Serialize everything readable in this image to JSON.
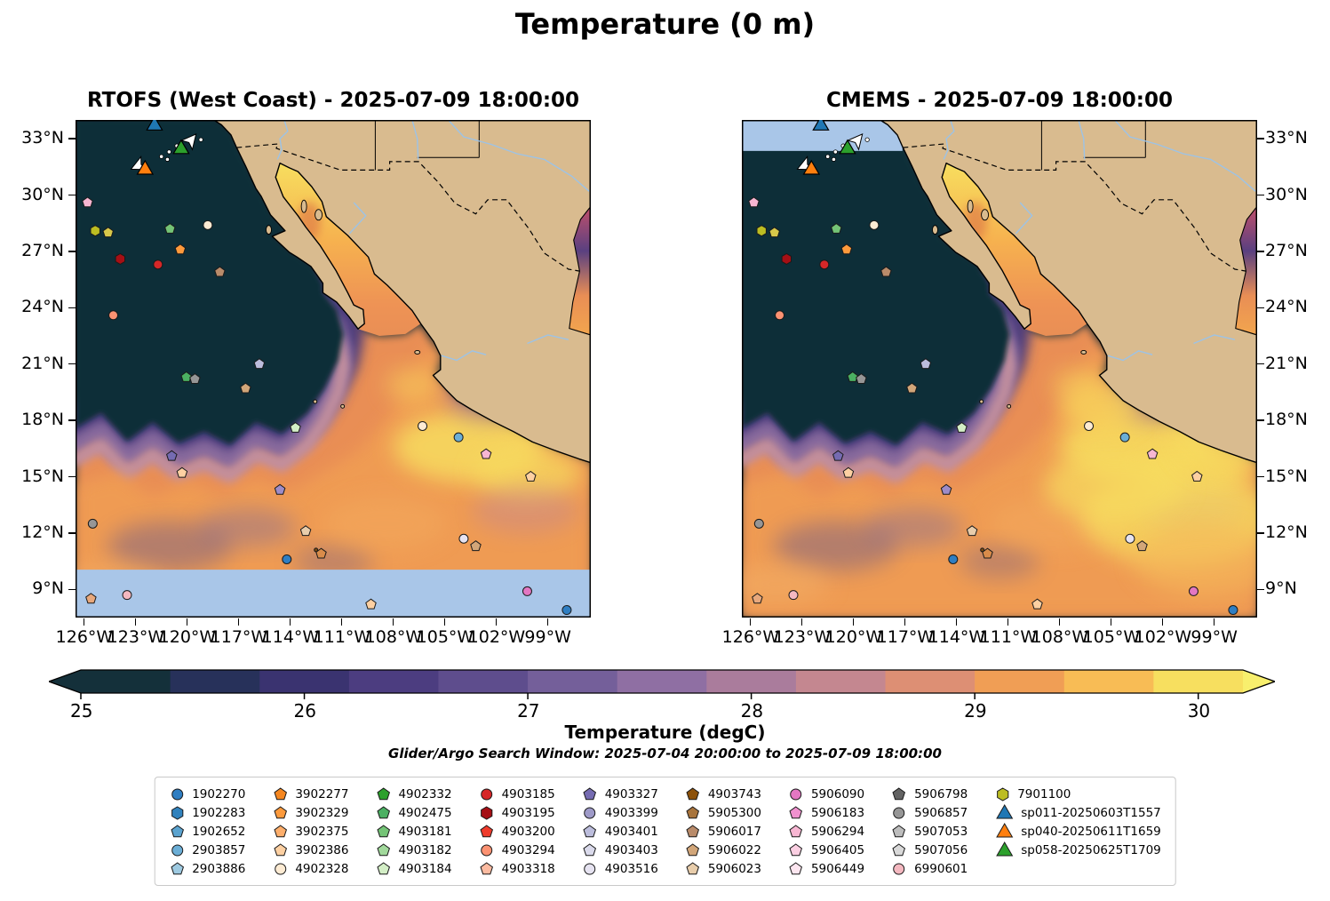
{
  "title": "Temperature (0 m)",
  "panels": [
    {
      "title": "RTOFS (West Coast) - 2025-07-09 18:00:00"
    },
    {
      "title": "CMEMS - 2025-07-09 18:00:00"
    }
  ],
  "axes": {
    "lat_ticks": [
      "33°N",
      "30°N",
      "27°N",
      "24°N",
      "21°N",
      "18°N",
      "15°N",
      "12°N",
      "9°N"
    ],
    "lat_values": [
      33,
      30,
      27,
      24,
      21,
      18,
      15,
      12,
      9
    ],
    "lon_ticks": [
      "126°W",
      "123°W",
      "120°W",
      "117°W",
      "114°W",
      "111°W",
      "108°W",
      "105°W",
      "102°W",
      "99°W"
    ],
    "lon_values": [
      -126,
      -123,
      -120,
      -117,
      -114,
      -111,
      -108,
      -105,
      -102,
      -99
    ]
  },
  "colorbar": {
    "label": "Temperature (degC)",
    "ticks": [
      "25",
      "26",
      "27",
      "28",
      "29",
      "30"
    ],
    "tick_values": [
      25,
      26,
      27,
      28,
      29,
      30
    ],
    "segment_colors": [
      "#14303a",
      "#27315a",
      "#3a3370",
      "#4c3d80",
      "#5e4d8d",
      "#745f9a",
      "#8f6fa3",
      "#aa7c9c",
      "#c48790",
      "#dd8f74",
      "#f09e55",
      "#f8bc55",
      "#f7df5f"
    ],
    "extend_left": "#14303a",
    "extend_right": "#f8ef6d"
  },
  "subtitle": "Glider/Argo Search Window: 2025-07-04 20:00:00 to 2025-07-09 18:00:00",
  "colors": {
    "ocean_cold": "#0f2d38",
    "warm_base": "#e98e55",
    "land": "#d9bb8f",
    "river": "#9dc3e6",
    "no_data": "#a9c6e8"
  },
  "legend": {
    "entries": [
      {
        "label": "1902270",
        "shape": "circle",
        "color": "#2f7ec2"
      },
      {
        "label": "1902283",
        "shape": "hexagon",
        "color": "#3182bd"
      },
      {
        "label": "1902652",
        "shape": "pentagon",
        "color": "#5ba3cf"
      },
      {
        "label": "2903857",
        "shape": "circle",
        "color": "#6baed6"
      },
      {
        "label": "2903886",
        "shape": "pentagon",
        "color": "#9ecae1"
      },
      {
        "label": "3902277",
        "shape": "pentagon",
        "color": "#f5861f"
      },
      {
        "label": "3902329",
        "shape": "pentagon",
        "color": "#fd9a3c"
      },
      {
        "label": "3902375",
        "shape": "pentagon",
        "color": "#fdae6b"
      },
      {
        "label": "3902386",
        "shape": "pentagon",
        "color": "#fdd0a2"
      },
      {
        "label": "4902328",
        "shape": "circle",
        "color": "#fdebd3"
      },
      {
        "label": "4902332",
        "shape": "pentagon",
        "color": "#2ca02c"
      },
      {
        "label": "4902475",
        "shape": "pentagon",
        "color": "#4bb062"
      },
      {
        "label": "4903181",
        "shape": "pentagon",
        "color": "#74c476"
      },
      {
        "label": "4903182",
        "shape": "pentagon",
        "color": "#a1d99b"
      },
      {
        "label": "4903184",
        "shape": "pentagon",
        "color": "#d3eec6"
      },
      {
        "label": "4903185",
        "shape": "circle",
        "color": "#d62728"
      },
      {
        "label": "4903195",
        "shape": "hexagon",
        "color": "#a50f15"
      },
      {
        "label": "4903200",
        "shape": "pentagon",
        "color": "#ef3b2c"
      },
      {
        "label": "4903294",
        "shape": "circle",
        "color": "#fc9272"
      },
      {
        "label": "4903318",
        "shape": "pentagon",
        "color": "#fcbba1"
      },
      {
        "label": "4903327",
        "shape": "pentagon",
        "color": "#756bb1"
      },
      {
        "label": "4903399",
        "shape": "circle",
        "color": "#9e9ac8"
      },
      {
        "label": "4903401",
        "shape": "pentagon",
        "color": "#bcbddc"
      },
      {
        "label": "4903403",
        "shape": "pentagon",
        "color": "#dadaeb"
      },
      {
        "label": "4903516",
        "shape": "circle",
        "color": "#e6e3f1"
      },
      {
        "label": "4903743",
        "shape": "pentagon",
        "color": "#8c510a"
      },
      {
        "label": "5905300",
        "shape": "pentagon",
        "color": "#a8743c"
      },
      {
        "label": "5906017",
        "shape": "pentagon",
        "color": "#b98b6a"
      },
      {
        "label": "5906022",
        "shape": "pentagon",
        "color": "#d2a679"
      },
      {
        "label": "5906023",
        "shape": "pentagon",
        "color": "#e8cdab"
      },
      {
        "label": "5906090",
        "shape": "circle",
        "color": "#e377c2"
      },
      {
        "label": "5906183",
        "shape": "pentagon",
        "color": "#f191cf"
      },
      {
        "label": "5906294",
        "shape": "pentagon",
        "color": "#f7b6d2"
      },
      {
        "label": "5906405",
        "shape": "pentagon",
        "color": "#fbcfe2"
      },
      {
        "label": "5906449",
        "shape": "pentagon",
        "color": "#fde6f0"
      },
      {
        "label": "5906798",
        "shape": "pentagon",
        "color": "#636363"
      },
      {
        "label": "5906857",
        "shape": "circle",
        "color": "#969696"
      },
      {
        "label": "5907053",
        "shape": "pentagon",
        "color": "#bdbdbd"
      },
      {
        "label": "5907056",
        "shape": "pentagon",
        "color": "#d9d9d9"
      },
      {
        "label": "6990601",
        "shape": "circle",
        "color": "#f4b8c0"
      },
      {
        "label": "7901100",
        "shape": "hexagon",
        "color": "#bcbd22"
      },
      {
        "label": "sp011-20250603T1557",
        "shape": "triangle",
        "color": "#1f77b4"
      },
      {
        "label": "sp040-20250611T1659",
        "shape": "triangle",
        "color": "#ff7f0e"
      },
      {
        "label": "sp058-20250625T1709",
        "shape": "triangle",
        "color": "#2ca02c"
      }
    ]
  },
  "chart_data": {
    "type": "heatmap",
    "title": "Temperature (0 m)",
    "variable": "Temperature",
    "units": "degC",
    "depth_m": 0,
    "panels": [
      {
        "model": "RTOFS (West Coast)",
        "valid_time": "2025-07-09 18:00:00"
      },
      {
        "model": "CMEMS",
        "valid_time": "2025-07-09 18:00:00"
      }
    ],
    "lon_range": [
      -126.5,
      -96.5
    ],
    "lat_range": [
      7.5,
      34
    ],
    "colorbar": {
      "min": 25,
      "max": 30,
      "label": "Temperature (degC)",
      "ticks": [
        25,
        26,
        27,
        28,
        29,
        30
      ]
    },
    "search_window": {
      "start": "2025-07-04 20:00:00",
      "end": "2025-07-09 18:00:00"
    },
    "floats": [
      {
        "lon": -125.8,
        "lat": 29.6,
        "shape": "pentagon",
        "color": "#f7b6d2"
      },
      {
        "lon": -125.35,
        "lat": 28.1,
        "shape": "hexagon",
        "color": "#bcbd22"
      },
      {
        "lon": -124.6,
        "lat": 28.0,
        "shape": "pentagon",
        "color": "#d8c84a"
      },
      {
        "lon": -123.9,
        "lat": 26.6,
        "shape": "hexagon",
        "color": "#a50f15"
      },
      {
        "lon": -121.7,
        "lat": 26.3,
        "shape": "circle",
        "color": "#d62728"
      },
      {
        "lon": -121.0,
        "lat": 28.2,
        "shape": "pentagon",
        "color": "#74c476"
      },
      {
        "lon": -120.4,
        "lat": 27.1,
        "shape": "pentagon",
        "color": "#fd9a3c"
      },
      {
        "lon": -118.8,
        "lat": 28.4,
        "shape": "circle",
        "color": "#fdebd3"
      },
      {
        "lon": -118.1,
        "lat": 25.9,
        "shape": "pentagon",
        "color": "#b98b6a"
      },
      {
        "lon": -124.3,
        "lat": 23.6,
        "shape": "circle",
        "color": "#fc9272"
      },
      {
        "lon": -115.8,
        "lat": 21.0,
        "shape": "pentagon",
        "color": "#bcbddc"
      },
      {
        "lon": -120.05,
        "lat": 20.3,
        "shape": "pentagon",
        "color": "#4bb062"
      },
      {
        "lon": -119.55,
        "lat": 20.2,
        "shape": "pentagon",
        "color": "#969696"
      },
      {
        "lon": -116.6,
        "lat": 19.7,
        "shape": "pentagon",
        "color": "#d2a679"
      },
      {
        "lon": -113.7,
        "lat": 17.6,
        "shape": "pentagon",
        "color": "#d3eec6"
      },
      {
        "lon": -120.9,
        "lat": 16.1,
        "shape": "pentagon",
        "color": "#756bb1"
      },
      {
        "lon": -120.3,
        "lat": 15.2,
        "shape": "pentagon",
        "color": "#fdd0a2"
      },
      {
        "lon": -114.6,
        "lat": 14.3,
        "shape": "pentagon",
        "color": "#9e8cc8"
      },
      {
        "lon": -125.5,
        "lat": 12.5,
        "shape": "circle",
        "color": "#969696"
      },
      {
        "lon": -113.1,
        "lat": 12.1,
        "shape": "pentagon",
        "color": "#e8cdab"
      },
      {
        "lon": -112.2,
        "lat": 10.9,
        "shape": "pentagon",
        "color": "#d98c4a"
      },
      {
        "lon": -112.5,
        "lat": 11.1,
        "shape": "circle",
        "color": "#7a4a12",
        "r": 3
      },
      {
        "lon": -114.2,
        "lat": 10.6,
        "shape": "circle",
        "color": "#2f7ec2"
      },
      {
        "lon": -106.3,
        "lat": 17.7,
        "shape": "circle",
        "color": "#fdebd3"
      },
      {
        "lon": -104.2,
        "lat": 17.1,
        "shape": "circle",
        "color": "#6baed6"
      },
      {
        "lon": -102.6,
        "lat": 16.2,
        "shape": "pentagon",
        "color": "#f7b6d2"
      },
      {
        "lon": -100.0,
        "lat": 15.0,
        "shape": "pentagon",
        "color": "#fdd0a2"
      },
      {
        "lon": -103.9,
        "lat": 11.7,
        "shape": "circle",
        "color": "#e6e3f1"
      },
      {
        "lon": -103.2,
        "lat": 11.3,
        "shape": "pentagon",
        "color": "#d2a679"
      },
      {
        "lon": -100.2,
        "lat": 8.9,
        "shape": "circle",
        "color": "#e377c2"
      },
      {
        "lon": -125.6,
        "lat": 8.5,
        "shape": "pentagon",
        "color": "#e8a87c"
      },
      {
        "lon": -123.5,
        "lat": 8.7,
        "shape": "circle",
        "color": "#f4b8c0"
      },
      {
        "lon": -109.3,
        "lat": 8.2,
        "shape": "pentagon",
        "color": "#fdd0a2"
      },
      {
        "lon": -97.9,
        "lat": 7.9,
        "shape": "circle",
        "color": "#2f7ec2"
      }
    ],
    "gliders": [
      {
        "id": "sp011-20250603T1557",
        "lon": -121.9,
        "lat": 33.7,
        "color": "#1f77b4"
      },
      {
        "id": "sp040-20250611T1659",
        "lon": -122.45,
        "lat": 31.35,
        "color": "#ff7f0e"
      },
      {
        "id": "sp058-20250625T1709",
        "lon": -120.35,
        "lat": 32.45,
        "color": "#2ca02c"
      }
    ],
    "glider_arrows": [
      {
        "lon": -119.85,
        "lat": 32.85,
        "rot": 40
      },
      {
        "lon": -122.75,
        "lat": 31.6,
        "rot": -115
      }
    ],
    "glider_track_dots": [
      [
        -121.05,
        32.3
      ],
      [
        -121.5,
        32.05
      ],
      [
        -120.6,
        32.62
      ],
      [
        -119.2,
        32.95
      ],
      [
        -121.15,
        31.9
      ]
    ]
  }
}
